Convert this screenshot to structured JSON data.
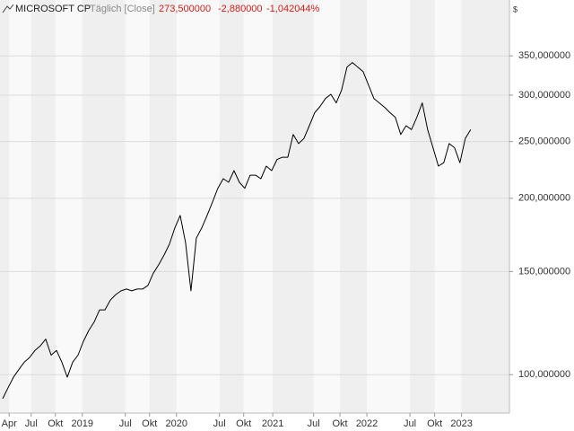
{
  "chart_data": {
    "type": "line",
    "title": "MICROSOFT CP",
    "subtitle": "Täglich [Close]",
    "quote": [
      "273,500000",
      "-2,880000",
      "-1,042044%"
    ],
    "y_unit": "$",
    "log_scale": true,
    "grid": true,
    "color": "#000000",
    "values": [
      91,
      95,
      99,
      102,
      105,
      107,
      110,
      112,
      115,
      108,
      110,
      105,
      99,
      105,
      108,
      114,
      119,
      123,
      129,
      129,
      134,
      137,
      139,
      140,
      139,
      140,
      140,
      142,
      149,
      154,
      160,
      167,
      178,
      187,
      168,
      139,
      171,
      178,
      187,
      197,
      208,
      216,
      213,
      223,
      213,
      208,
      219,
      219,
      216,
      227,
      223,
      233,
      235,
      235,
      257,
      248,
      253,
      266,
      280,
      287,
      296,
      301,
      291,
      306,
      335,
      341,
      335,
      329,
      312,
      296,
      291,
      286,
      280,
      275,
      257,
      266,
      262,
      275,
      291,
      262,
      244,
      227,
      230,
      248,
      244,
      230,
      253,
      262
    ],
    "xlim": [
      -0.5,
      94.2
    ],
    "xticks": [
      {
        "value": 1.2,
        "label": "Apr"
      },
      {
        "value": 5.3,
        "label": "Jul"
      },
      {
        "value": 9.8,
        "label": "Okt"
      },
      {
        "value": 14.8,
        "label": "2019"
      },
      {
        "value": 22.8,
        "label": "Jul"
      },
      {
        "value": 27.3,
        "label": "Okt"
      },
      {
        "value": 32.3,
        "label": "2020"
      },
      {
        "value": 40.3,
        "label": "Jul"
      },
      {
        "value": 44.8,
        "label": "Okt"
      },
      {
        "value": 50.2,
        "label": "2021"
      },
      {
        "value": 57.8,
        "label": "Jul"
      },
      {
        "value": 62.7,
        "label": "Okt"
      },
      {
        "value": 67.7,
        "label": "2022"
      },
      {
        "value": 75.7,
        "label": "Jul"
      },
      {
        "value": 80.3,
        "label": "Okt"
      },
      {
        "value": 85.3,
        "label": "2023"
      }
    ],
    "ylim": [
      86,
      436
    ],
    "yticks": [
      {
        "value": 100,
        "label": "100,000000"
      },
      {
        "value": 150,
        "label": "150,000000"
      },
      {
        "value": 200,
        "label": "200,000000"
      },
      {
        "value": 250,
        "label": "250,000000"
      },
      {
        "value": 300,
        "label": "300,000000"
      },
      {
        "value": 350,
        "label": "350,000000"
      }
    ]
  }
}
